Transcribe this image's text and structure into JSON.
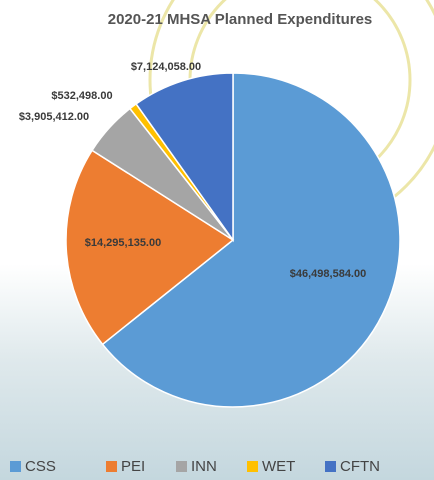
{
  "chart_data": {
    "type": "pie",
    "title": "2020-21 MHSA Planned Expenditures",
    "categories": [
      "CSS",
      "PEI",
      "INN",
      "WET",
      "CFTN"
    ],
    "values": [
      46498584,
      14295135,
      3905412,
      532498,
      7124058
    ],
    "value_labels": [
      "$46,498,584.00",
      "$14,295,135.00",
      "$3,905,412.00",
      "$532,498.00",
      "$7,124,058.00"
    ],
    "colors": [
      "#5b9bd5",
      "#ed7d31",
      "#a5a5a5",
      "#ffc000",
      "#4472c4"
    ],
    "legend": "bottom"
  }
}
